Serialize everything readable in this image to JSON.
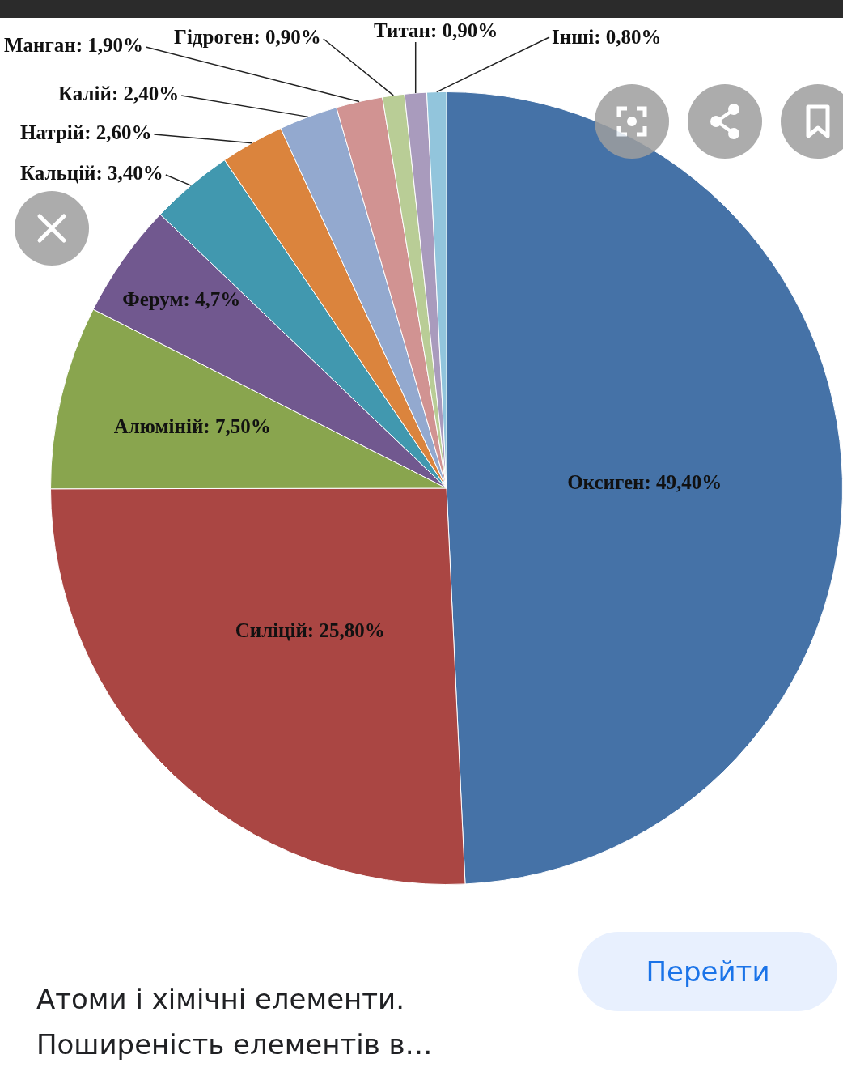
{
  "chart_data": {
    "type": "pie",
    "categories": [
      "Оксиген",
      "Силіцій",
      "Алюміній",
      "Ферум",
      "Кальцій",
      "Натрій",
      "Калій",
      "Манган",
      "Гідроген",
      "Титан",
      "Інші"
    ],
    "values": [
      49.4,
      25.8,
      7.5,
      4.7,
      3.4,
      2.6,
      2.4,
      1.9,
      0.9,
      0.9,
      0.8
    ],
    "value_labels": [
      "49,40%",
      "25,80%",
      "7,50%",
      "4,7%",
      "3,40%",
      "2,60%",
      "2,40%",
      "1,90%",
      "0,90%",
      "0,90%",
      "0,80%"
    ],
    "colors": [
      "#4572a7",
      "#aa4643",
      "#89a54e",
      "#71588f",
      "#4198af",
      "#db843d",
      "#93a9cf",
      "#d19392",
      "#b9cd96",
      "#a99bbd",
      "#92c5dc"
    ],
    "legend": false,
    "annotations": [
      "Атоми і хімічні елементи.",
      "Поширеність елементів в…",
      "Перейти"
    ]
  }
}
